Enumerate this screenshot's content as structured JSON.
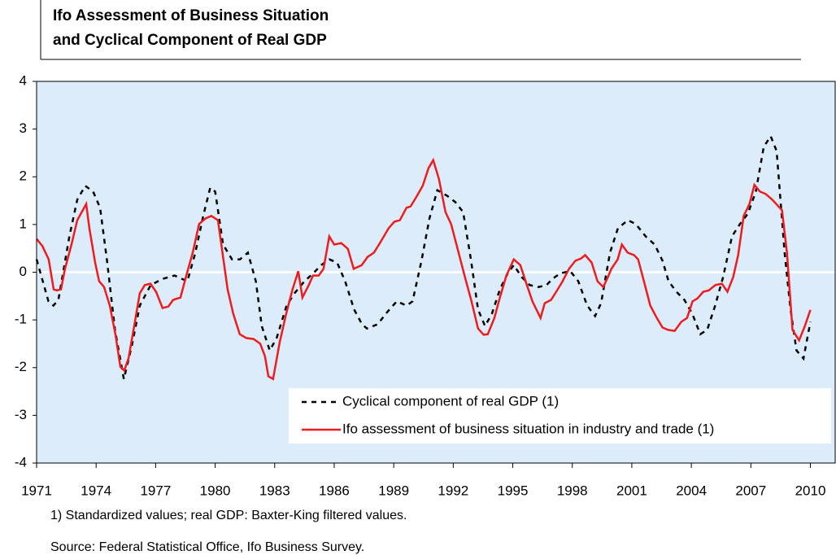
{
  "chart_data": {
    "type": "line",
    "title": [
      "Ifo Assessment of Business Situation",
      "and Cyclical Component of Real GDP"
    ],
    "footnotes": [
      "1) Standardized values; real GDP: Baxter-King filtered values.",
      "Source:  Federal Statistical Office, Ifo Business Survey."
    ],
    "xlim": [
      1971,
      2011.25
    ],
    "xticks": [
      1971,
      1974,
      1977,
      1980,
      1983,
      1986,
      1989,
      1992,
      1995,
      1998,
      2001,
      2004,
      2007,
      2010
    ],
    "ylim": [
      -4,
      4
    ],
    "yticks": [
      -4,
      -3,
      -2,
      -1,
      0,
      1,
      2,
      3,
      4
    ],
    "zero_line": true,
    "legend": "lower right",
    "background": "#dcecfa",
    "series": [
      {
        "name": "Cyclical component of real GDP (1)",
        "color": "#000000",
        "dashed": true,
        "x": [
          1971.0,
          1971.6,
          1971.85,
          1972.1,
          1972.65,
          1973.05,
          1973.45,
          1973.85,
          1974.2,
          1974.55,
          1974.95,
          1975.4,
          1975.8,
          1976.2,
          1976.75,
          1977.35,
          1977.95,
          1978.6,
          1979.0,
          1979.4,
          1979.75,
          1980.0,
          1980.4,
          1980.85,
          1981.25,
          1981.65,
          1982.05,
          1982.35,
          1982.75,
          1983.1,
          1983.6,
          1984.0,
          1984.5,
          1984.95,
          1985.35,
          1985.75,
          1986.15,
          1986.55,
          1987.0,
          1987.4,
          1987.65,
          1988.2,
          1988.6,
          1989.15,
          1989.65,
          1989.95,
          1990.4,
          1990.8,
          1991.2,
          1991.7,
          1992.1,
          1992.5,
          1992.9,
          1993.25,
          1993.6,
          1993.95,
          1994.35,
          1994.75,
          1995.05,
          1995.45,
          1995.85,
          1996.3,
          1996.7,
          1997.0,
          1997.4,
          1997.9,
          1998.3,
          1998.75,
          1999.15,
          1999.45,
          1999.9,
          2000.3,
          2000.8,
          2001.2,
          2001.7,
          2002.15,
          2002.55,
          2002.85,
          2003.25,
          2003.65,
          2004.05,
          2004.45,
          2004.8,
          2005.2,
          2005.6,
          2006.05,
          2006.45,
          2006.85,
          2007.25,
          2007.65,
          2008.0,
          2008.3,
          2008.7,
          2009.0,
          2009.3,
          2009.65,
          2010.0
        ],
        "values": [
          0.27,
          -0.61,
          -0.7,
          -0.58,
          0.75,
          1.52,
          1.81,
          1.69,
          1.35,
          0.24,
          -1.21,
          -2.24,
          -1.54,
          -0.7,
          -0.27,
          -0.14,
          -0.07,
          -0.19,
          0.41,
          1.18,
          1.77,
          1.69,
          0.58,
          0.27,
          0.27,
          0.41,
          -0.19,
          -1.13,
          -1.64,
          -1.38,
          -0.7,
          -0.44,
          -0.19,
          -0.02,
          0.15,
          0.27,
          0.2,
          -0.19,
          -0.78,
          -1.09,
          -1.18,
          -1.09,
          -0.87,
          -0.61,
          -0.7,
          -0.61,
          0.24,
          1.13,
          1.72,
          1.6,
          1.47,
          1.26,
          0.24,
          -0.78,
          -1.13,
          -0.87,
          -0.36,
          -0.02,
          0.15,
          -0.1,
          -0.27,
          -0.31,
          -0.27,
          -0.14,
          -0.02,
          0.02,
          -0.19,
          -0.7,
          -0.92,
          -0.65,
          0.41,
          0.92,
          1.09,
          1.01,
          0.75,
          0.58,
          0.24,
          -0.19,
          -0.41,
          -0.58,
          -0.87,
          -1.3,
          -1.21,
          -0.7,
          -0.1,
          0.75,
          1.01,
          1.23,
          1.69,
          2.63,
          2.85,
          2.54,
          0.41,
          -0.78,
          -1.64,
          -1.81,
          -1.04
        ]
      },
      {
        "name": "Ifo assessment of business situation in industry and trade (1)",
        "color": "#ee1c1c",
        "dashed": false,
        "x": [
          1971.0,
          1971.29,
          1971.61,
          1971.86,
          1972.02,
          1972.23,
          1972.43,
          1972.76,
          1973.05,
          1973.5,
          1973.66,
          1973.95,
          1974.15,
          1974.4,
          1974.69,
          1974.97,
          1975.22,
          1975.42,
          1975.63,
          1975.92,
          1976.2,
          1976.45,
          1976.74,
          1977.02,
          1977.35,
          1977.64,
          1977.88,
          1978.25,
          1978.58,
          1978.87,
          1979.19,
          1979.52,
          1979.81,
          1980.14,
          1980.34,
          1980.63,
          1980.91,
          1981.24,
          1981.57,
          1981.94,
          1982.27,
          1982.51,
          1982.68,
          1982.92,
          1983.25,
          1983.58,
          1983.9,
          1984.19,
          1984.4,
          1984.72,
          1984.93,
          1985.22,
          1985.46,
          1985.75,
          1986.0,
          1986.36,
          1986.69,
          1986.98,
          1987.39,
          1987.68,
          1988.0,
          1988.33,
          1988.74,
          1989.03,
          1989.31,
          1989.64,
          1989.85,
          1990.13,
          1990.46,
          1990.75,
          1990.99,
          1991.28,
          1991.61,
          1991.89,
          1992.22,
          1992.59,
          1992.92,
          1993.25,
          1993.53,
          1993.74,
          1994.07,
          1994.35,
          1994.68,
          1995.05,
          1995.38,
          1995.71,
          1995.99,
          1996.4,
          1996.61,
          1996.93,
          1997.22,
          1997.51,
          1997.83,
          1998.16,
          1998.45,
          1998.65,
          1998.98,
          1999.27,
          1999.56,
          1999.8,
          1999.97,
          2000.29,
          2000.5,
          2000.79,
          2001.11,
          2001.32,
          2001.61,
          2001.93,
          2002.26,
          2002.55,
          2002.83,
          2003.16,
          2003.49,
          2003.78,
          2004.06,
          2004.31,
          2004.6,
          2004.88,
          2005.21,
          2005.54,
          2005.82,
          2006.11,
          2006.36,
          2006.64,
          2006.93,
          2007.18,
          2007.46,
          2007.75,
          2008.08,
          2008.28,
          2008.57,
          2008.82,
          2009.1,
          2009.43,
          2009.72,
          2010.0
        ],
        "values": [
          0.7,
          0.55,
          0.27,
          -0.36,
          -0.38,
          -0.36,
          0.07,
          0.58,
          1.09,
          1.43,
          0.92,
          0.2,
          -0.19,
          -0.31,
          -0.7,
          -1.3,
          -1.98,
          -2.06,
          -1.81,
          -1.13,
          -0.44,
          -0.27,
          -0.24,
          -0.41,
          -0.75,
          -0.72,
          -0.58,
          -0.53,
          -0.02,
          0.41,
          1.01,
          1.13,
          1.18,
          1.09,
          0.49,
          -0.36,
          -0.87,
          -1.3,
          -1.38,
          -1.4,
          -1.5,
          -1.76,
          -2.18,
          -2.24,
          -1.47,
          -0.87,
          -0.36,
          0.02,
          -0.53,
          -0.27,
          -0.07,
          -0.07,
          0.07,
          0.75,
          0.58,
          0.61,
          0.49,
          0.07,
          0.15,
          0.32,
          0.41,
          0.63,
          0.92,
          1.06,
          1.09,
          1.35,
          1.38,
          1.57,
          1.81,
          2.18,
          2.35,
          1.95,
          1.26,
          1.01,
          0.49,
          -0.1,
          -0.61,
          -1.18,
          -1.31,
          -1.3,
          -0.96,
          -0.53,
          -0.07,
          0.27,
          0.15,
          -0.27,
          -0.61,
          -0.96,
          -0.65,
          -0.58,
          -0.39,
          -0.19,
          0.07,
          0.24,
          0.29,
          0.36,
          0.2,
          -0.19,
          -0.31,
          -0.1,
          0.07,
          0.27,
          0.58,
          0.41,
          0.36,
          0.27,
          -0.19,
          -0.7,
          -0.96,
          -1.16,
          -1.21,
          -1.23,
          -1.04,
          -0.96,
          -0.61,
          -0.55,
          -0.41,
          -0.38,
          -0.27,
          -0.24,
          -0.41,
          -0.1,
          0.36,
          1.18,
          1.43,
          1.83,
          1.69,
          1.64,
          1.52,
          1.43,
          1.3,
          0.41,
          -1.21,
          -1.43,
          -1.13,
          -0.79
        ]
      }
    ]
  }
}
